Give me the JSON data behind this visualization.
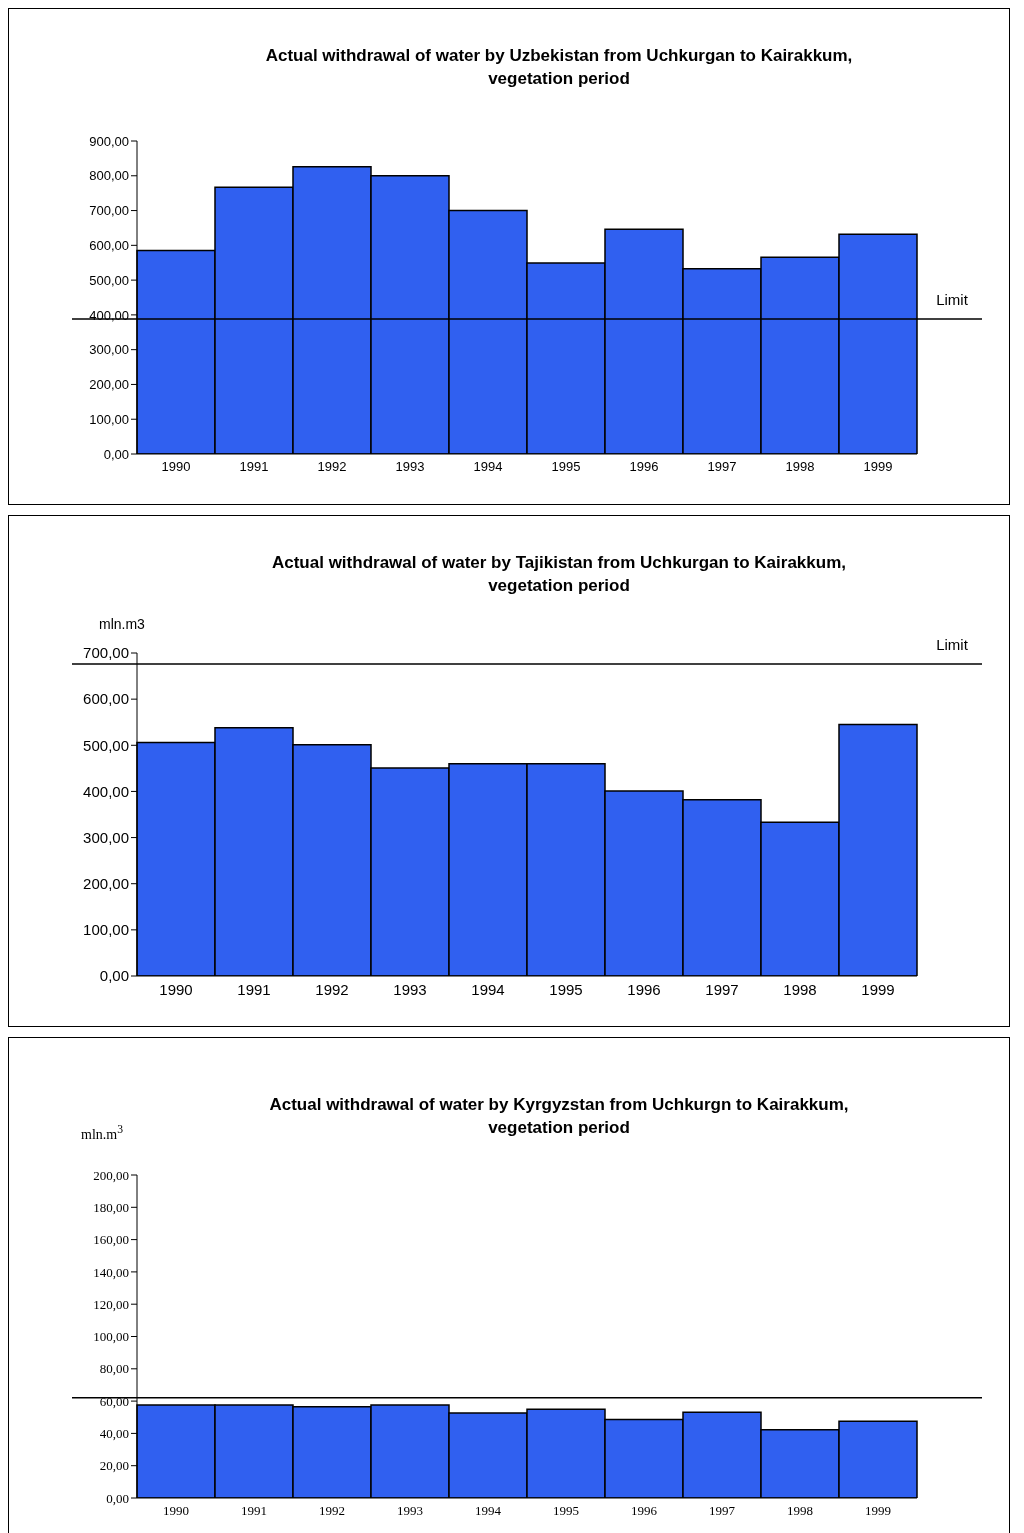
{
  "chart_data": [
    {
      "type": "bar",
      "title": "Actual withdrawal of water by Uzbekistan from Uchkurgan to Kairakkum, vegetation period",
      "categories": [
        "1990",
        "1991",
        "1992",
        "1993",
        "1994",
        "1995",
        "1996",
        "1997",
        "1998",
        "1999"
      ],
      "values": [
        585,
        767,
        826,
        800,
        700,
        549,
        646,
        533,
        566,
        632
      ],
      "color": "#3060f0",
      "ylim": [
        0,
        900
      ],
      "yticks": [
        {
          "value": 0,
          "label": "0,00"
        },
        {
          "value": 100,
          "label": "100,00"
        },
        {
          "value": 200,
          "label": "200,00"
        },
        {
          "value": 300,
          "label": "300,00"
        },
        {
          "value": 400,
          "label": "400,00"
        },
        {
          "value": 500,
          "label": "500,00"
        },
        {
          "value": 600,
          "label": "600,00"
        },
        {
          "value": 700,
          "label": "700,00"
        },
        {
          "value": 800,
          "label": "800,00"
        },
        {
          "value": 900,
          "label": "900,00"
        }
      ],
      "ref_lines": [
        {
          "axis": "y",
          "value": 388,
          "label": "Limit",
          "color": "#000000"
        }
      ],
      "grid": false,
      "legend": false
    },
    {
      "type": "bar",
      "title": "Actual withdrawal of water by Tajikistan from Uchkurgan to Kairakkum, vegetation period",
      "ylabel": "mln.m3",
      "categories": [
        "1990",
        "1991",
        "1992",
        "1993",
        "1994",
        "1995",
        "1996",
        "1997",
        "1998",
        "1999"
      ],
      "values": [
        506,
        538,
        501,
        451,
        460,
        460,
        401,
        382,
        333,
        545
      ],
      "color": "#3060f0",
      "ylim": [
        0,
        700
      ],
      "yticks": [
        {
          "value": 0,
          "label": "0,00"
        },
        {
          "value": 100,
          "label": "100,00"
        },
        {
          "value": 200,
          "label": "200,00"
        },
        {
          "value": 300,
          "label": "300,00"
        },
        {
          "value": 400,
          "label": "400,00"
        },
        {
          "value": 500,
          "label": "500,00"
        },
        {
          "value": 600,
          "label": "600,00"
        },
        {
          "value": 700,
          "label": "700,00"
        }
      ],
      "ref_lines": [
        {
          "axis": "y",
          "value": 676,
          "label": "Limit",
          "color": "#000000"
        }
      ],
      "grid": false,
      "legend": false
    },
    {
      "type": "bar",
      "title": "Actual withdrawal of water by Kyrgyzstan from Uchkurgn to Kairakkum, vegetation period",
      "ylabel": "mln.m$^{3}$",
      "categories": [
        "1990",
        "1991",
        "1992",
        "1993",
        "1994",
        "1995",
        "1996",
        "1997",
        "1998",
        "1999"
      ],
      "values": [
        57.6,
        57.6,
        56.5,
        57.6,
        52.7,
        55.0,
        48.6,
        53.1,
        42.2,
        47.5
      ],
      "color": "#3060f0",
      "ylim": [
        0,
        200
      ],
      "yticks": [
        {
          "value": 0,
          "label": "0,00"
        },
        {
          "value": 20,
          "label": "20,00"
        },
        {
          "value": 40,
          "label": "40,00"
        },
        {
          "value": 60,
          "label": "60,00"
        },
        {
          "value": 80,
          "label": "80,00"
        },
        {
          "value": 100,
          "label": "100,00"
        },
        {
          "value": 120,
          "label": "120,00"
        },
        {
          "value": 140,
          "label": "140,00"
        },
        {
          "value": 160,
          "label": "160,00"
        },
        {
          "value": 180,
          "label": "180,00"
        },
        {
          "value": 200,
          "label": "200,00"
        }
      ],
      "ref_lines": [
        {
          "axis": "y",
          "value": 62,
          "color": "#000000"
        }
      ],
      "grid": false,
      "legend": false
    }
  ]
}
